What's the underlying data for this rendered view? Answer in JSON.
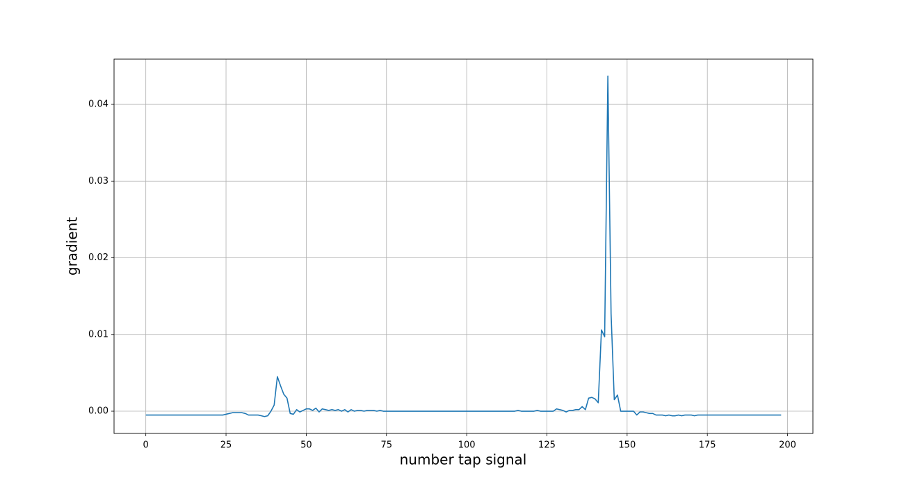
{
  "chart_data": {
    "type": "line",
    "x_label": "number tap signal",
    "y_label": "gradient",
    "x": [
      0,
      1,
      2,
      3,
      4,
      5,
      6,
      7,
      8,
      9,
      10,
      11,
      12,
      13,
      14,
      15,
      16,
      17,
      18,
      19,
      20,
      21,
      22,
      23,
      24,
      25,
      26,
      27,
      28,
      29,
      30,
      31,
      32,
      33,
      34,
      35,
      36,
      37,
      38,
      39,
      40,
      41,
      42,
      43,
      44,
      45,
      46,
      47,
      48,
      49,
      50,
      51,
      52,
      53,
      54,
      55,
      56,
      57,
      58,
      59,
      60,
      61,
      62,
      63,
      64,
      65,
      66,
      67,
      68,
      69,
      70,
      71,
      72,
      73,
      74,
      75,
      76,
      77,
      78,
      79,
      80,
      81,
      82,
      83,
      84,
      85,
      86,
      87,
      88,
      89,
      90,
      91,
      92,
      93,
      94,
      95,
      96,
      97,
      98,
      99,
      100,
      101,
      102,
      103,
      104,
      105,
      106,
      107,
      108,
      109,
      110,
      111,
      112,
      113,
      114,
      115,
      116,
      117,
      118,
      119,
      120,
      121,
      122,
      123,
      124,
      125,
      126,
      127,
      128,
      129,
      130,
      131,
      132,
      133,
      134,
      135,
      136,
      137,
      138,
      139,
      140,
      141,
      142,
      143,
      144,
      145,
      146,
      147,
      148,
      149,
      150,
      151,
      152,
      153,
      154,
      155,
      156,
      157,
      158,
      159,
      160,
      161,
      162,
      163,
      164,
      165,
      166,
      167,
      168,
      169,
      170,
      171,
      172,
      173,
      174,
      175,
      176,
      177,
      178,
      179,
      180,
      181,
      182,
      183,
      184,
      185,
      186,
      187,
      188,
      189,
      190,
      191,
      192,
      193,
      194,
      195,
      196,
      197,
      198
    ],
    "values": [
      -0.0005,
      -0.0005,
      -0.0005,
      -0.0005,
      -0.0005,
      -0.0005,
      -0.0005,
      -0.0005,
      -0.0005,
      -0.0005,
      -0.0005,
      -0.0005,
      -0.0005,
      -0.0005,
      -0.0005,
      -0.0005,
      -0.0005,
      -0.0005,
      -0.0005,
      -0.0005,
      -0.0005,
      -0.0005,
      -0.0005,
      -0.0005,
      -0.0005,
      -0.0004,
      -0.0003,
      -0.0002,
      -0.0002,
      -0.0002,
      -0.0002,
      -0.0003,
      -0.0005,
      -0.0005,
      -0.0005,
      -0.0005,
      -0.0006,
      -0.0007,
      -0.0006,
      0.0,
      0.0008,
      0.0045,
      0.0033,
      0.0022,
      0.0017,
      -0.0003,
      -0.0004,
      0.0002,
      -0.0001,
      0.0001,
      0.0003,
      0.0003,
      0.0001,
      0.0004,
      -0.0001,
      0.0003,
      0.0002,
      0.0001,
      0.0002,
      0.0001,
      0.0002,
      0.0,
      0.0002,
      -0.0001,
      0.0002,
      0.0,
      0.0001,
      0.0001,
      0.0,
      0.0001,
      0.0001,
      0.0001,
      0.0,
      0.0001,
      0.0,
      0.0,
      0.0,
      0.0,
      0.0,
      0.0,
      0,
      0,
      0,
      0,
      0,
      0,
      0,
      0,
      0,
      0,
      0,
      0,
      0,
      0,
      0,
      0,
      0,
      0,
      0,
      0,
      0,
      0,
      0,
      0,
      0,
      0,
      0,
      0,
      0,
      0,
      0,
      0,
      0,
      0,
      0,
      0,
      0.0001,
      0,
      0,
      0,
      0,
      0,
      0.0001,
      0,
      0,
      0,
      0,
      0,
      0.0003,
      0.0002,
      0.0001,
      -0.0001,
      0.0001,
      0.0001,
      0.0002,
      0.0002,
      0.0006,
      0.0002,
      0.0017,
      0.0018,
      0.0016,
      0.0011,
      0.0106,
      0.0097,
      0.0437,
      0.0127,
      0.0015,
      0.0021,
      0,
      0,
      0,
      0,
      0,
      -0.0005,
      -0.0001,
      -0.0001,
      -0.0002,
      -0.0003,
      -0.0003,
      -0.0005,
      -0.0005,
      -0.0005,
      -0.0006,
      -0.0005,
      -0.0006,
      -0.0006,
      -0.0005,
      -0.0006,
      -0.0005,
      -0.0005,
      -0.0005,
      -0.0006,
      -0.0005,
      -0.0005,
      -0.0005,
      -0.0005,
      -0.0005,
      -0.0005,
      -0.0005,
      -0.0005,
      -0.0005,
      -0.0005,
      -0.0005,
      -0.0005,
      -0.0005,
      -0.0005,
      -0.0005,
      -0.0005,
      -0.0005,
      -0.0005,
      -0.0005,
      -0.0005,
      -0.0005,
      -0.0005,
      -0.0005,
      -0.0005,
      -0.0005,
      -0.0005,
      -0.0005
    ],
    "color": "#1f77b4",
    "xlim": [
      -9.9,
      207.9
    ],
    "xticks": [
      0,
      25,
      50,
      75,
      100,
      125,
      150,
      175,
      200
    ],
    "ylim": [
      -0.0029,
      0.0459
    ],
    "yticks": [
      {
        "value": 0,
        "label": "0.00"
      },
      {
        "value": 0.01,
        "label": "0.01"
      },
      {
        "value": 0.02,
        "label": "0.02"
      },
      {
        "value": 0.03,
        "label": "0.03"
      },
      {
        "value": 0.04,
        "label": "0.04"
      }
    ],
    "grid": true
  }
}
